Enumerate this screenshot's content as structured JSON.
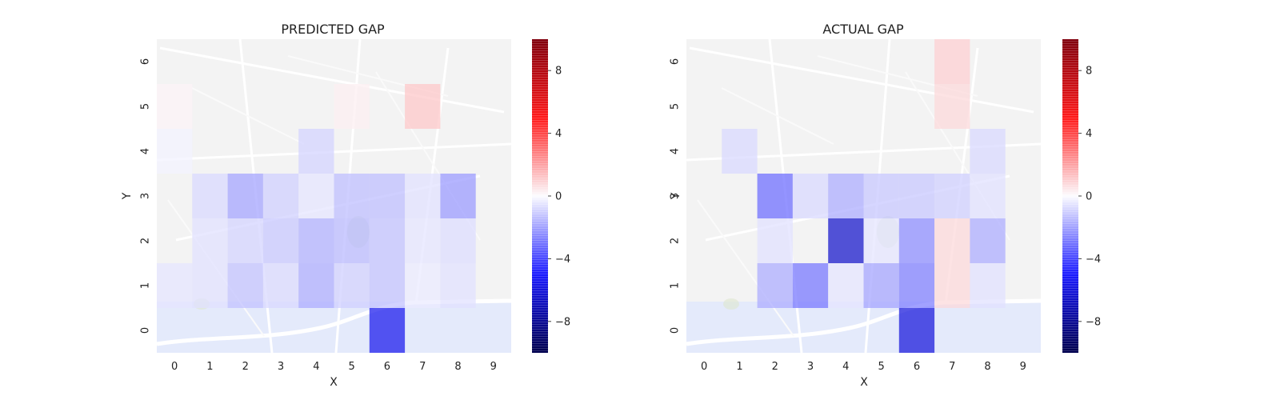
{
  "chart_data": [
    {
      "type": "heatmap",
      "title": "PREDICTED GAP",
      "xlabel": "X",
      "ylabel": "Y",
      "x": [
        0,
        1,
        2,
        3,
        4,
        5,
        6,
        7,
        8,
        9
      ],
      "y": [
        0,
        1,
        2,
        3,
        4,
        5,
        6
      ],
      "cells": [
        {
          "x": 0,
          "y": 1,
          "value": -0.5
        },
        {
          "x": 1,
          "y": 1,
          "value": -0.6
        },
        {
          "x": 2,
          "y": 1,
          "value": -1.3
        },
        {
          "x": 3,
          "y": 1,
          "value": -0.8
        },
        {
          "x": 4,
          "y": 1,
          "value": -1.8
        },
        {
          "x": 5,
          "y": 1,
          "value": -1.0
        },
        {
          "x": 6,
          "y": 1,
          "value": -1.3
        },
        {
          "x": 7,
          "y": 1,
          "value": -0.4
        },
        {
          "x": 8,
          "y": 1,
          "value": -0.6
        },
        {
          "x": 1,
          "y": 2,
          "value": -0.6
        },
        {
          "x": 2,
          "y": 2,
          "value": -0.9
        },
        {
          "x": 3,
          "y": 2,
          "value": -1.2
        },
        {
          "x": 4,
          "y": 2,
          "value": -1.7
        },
        {
          "x": 5,
          "y": 2,
          "value": -1.5
        },
        {
          "x": 6,
          "y": 2,
          "value": -1.3
        },
        {
          "x": 7,
          "y": 2,
          "value": -0.5
        },
        {
          "x": 8,
          "y": 2,
          "value": -0.7
        },
        {
          "x": 1,
          "y": 3,
          "value": -0.8
        },
        {
          "x": 2,
          "y": 3,
          "value": -2.0
        },
        {
          "x": 3,
          "y": 3,
          "value": -1.0
        },
        {
          "x": 4,
          "y": 3,
          "value": -0.5
        },
        {
          "x": 5,
          "y": 3,
          "value": -1.4
        },
        {
          "x": 6,
          "y": 3,
          "value": -1.4
        },
        {
          "x": 7,
          "y": 3,
          "value": -0.6
        },
        {
          "x": 8,
          "y": 3,
          "value": -2.2
        },
        {
          "x": 0,
          "y": 4,
          "value": -0.2
        },
        {
          "x": 4,
          "y": 4,
          "value": -0.9
        },
        {
          "x": 0,
          "y": 5,
          "value": 0.2
        },
        {
          "x": 5,
          "y": 5,
          "value": 0.3
        },
        {
          "x": 7,
          "y": 5,
          "value": 1.2
        },
        {
          "x": 6,
          "y": 0,
          "value": -5.5
        }
      ],
      "colormap": "seismic",
      "vmin": -10,
      "vmax": 10,
      "colorbar_ticks": [
        8,
        4,
        0,
        -4,
        -8
      ],
      "background": "street map of Porto"
    },
    {
      "type": "heatmap",
      "title": "ACTUAL GAP",
      "xlabel": "X",
      "ylabel": "Y",
      "x": [
        0,
        1,
        2,
        3,
        4,
        5,
        6,
        7,
        8,
        9
      ],
      "y": [
        0,
        1,
        2,
        3,
        4,
        5,
        6
      ],
      "cells": [
        {
          "x": 2,
          "y": 1,
          "value": -1.8
        },
        {
          "x": 3,
          "y": 1,
          "value": -3.0
        },
        {
          "x": 4,
          "y": 1,
          "value": -0.5
        },
        {
          "x": 5,
          "y": 1,
          "value": -2.0
        },
        {
          "x": 6,
          "y": 1,
          "value": -2.8
        },
        {
          "x": 7,
          "y": 1,
          "value": 0.8
        },
        {
          "x": 8,
          "y": 1,
          "value": -0.6
        },
        {
          "x": 2,
          "y": 2,
          "value": -0.6
        },
        {
          "x": 4,
          "y": 2,
          "value": -6.5
        },
        {
          "x": 5,
          "y": 2,
          "value": -0.5
        },
        {
          "x": 6,
          "y": 2,
          "value": -2.5
        },
        {
          "x": 7,
          "y": 2,
          "value": 0.8
        },
        {
          "x": 8,
          "y": 2,
          "value": -1.8
        },
        {
          "x": 2,
          "y": 3,
          "value": -3.2
        },
        {
          "x": 3,
          "y": 3,
          "value": -0.8
        },
        {
          "x": 4,
          "y": 3,
          "value": -1.8
        },
        {
          "x": 5,
          "y": 3,
          "value": -1.2
        },
        {
          "x": 6,
          "y": 3,
          "value": -1.2
        },
        {
          "x": 7,
          "y": 3,
          "value": -1.0
        },
        {
          "x": 8,
          "y": 3,
          "value": -0.6
        },
        {
          "x": 1,
          "y": 4,
          "value": -0.8
        },
        {
          "x": 8,
          "y": 4,
          "value": -0.8
        },
        {
          "x": 7,
          "y": 5,
          "value": 0.8
        },
        {
          "x": 7,
          "y": 6,
          "value": 1.0
        },
        {
          "x": 6,
          "y": 0,
          "value": -6.0
        }
      ],
      "colormap": "seismic",
      "vmin": -10,
      "vmax": 10,
      "colorbar_ticks": [
        8,
        4,
        0,
        -4,
        -8
      ],
      "background": "street map of Porto"
    }
  ]
}
